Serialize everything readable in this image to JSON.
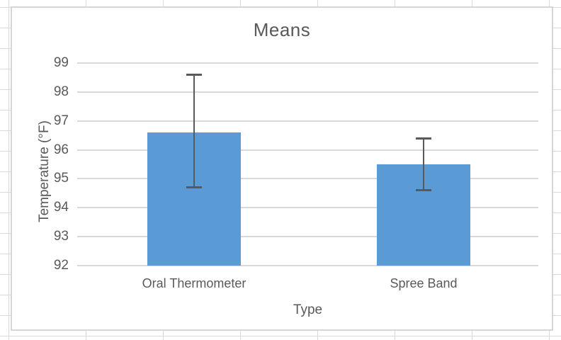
{
  "chart_data": {
    "type": "bar",
    "title": "Means",
    "xlabel": "Type",
    "ylabel": "Temperature (°F)",
    "categories": [
      "Oral Thermometer",
      "Spree Band"
    ],
    "values": [
      96.6,
      95.5
    ],
    "series": [
      {
        "name": "Means",
        "values": [
          96.6,
          95.5
        ],
        "error_upper": [
          98.6,
          96.4
        ],
        "error_lower": [
          94.7,
          94.6
        ]
      }
    ],
    "ylim": [
      92,
      99
    ],
    "yticks": [
      92,
      93,
      94,
      95,
      96,
      97,
      98,
      99
    ],
    "grid": "horizontal gridlines on",
    "legend_position": "none",
    "colors": {
      "bar": "#5B9BD5",
      "error_bar": "#595959",
      "gridline": "#D9D9D9",
      "axis_line": "#D9D9D9",
      "text": "#595959",
      "chart_border": "#D6D6D6",
      "spreadsheet_gridline": "#D9D9D9",
      "background": "#FFFFFF"
    }
  }
}
